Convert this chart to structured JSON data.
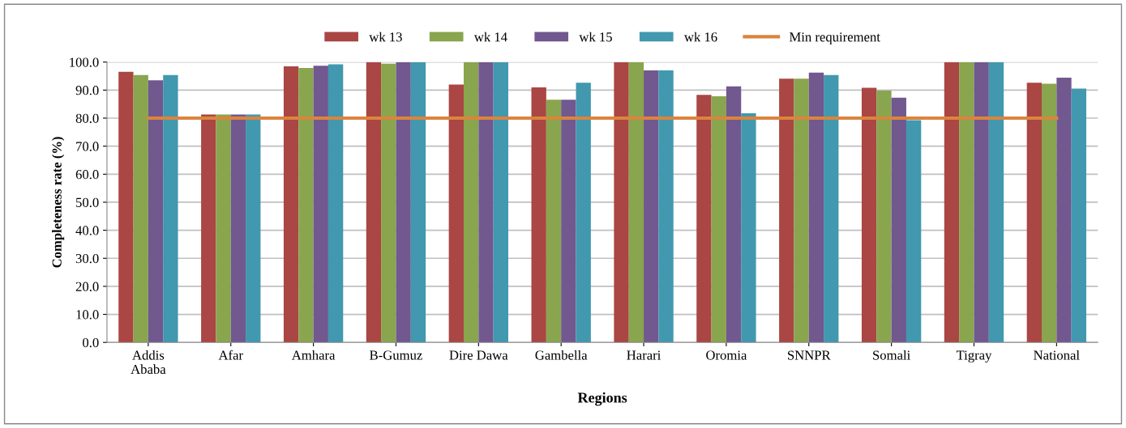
{
  "chart_data": {
    "type": "bar",
    "xlabel": "Regions",
    "ylabel": "Completeness rate (%)",
    "categories": [
      "Addis\nAbaba",
      "Afar",
      "Amhara",
      "B-Gumuz",
      "Dire Dawa",
      "Gambella",
      "Harari",
      "Oromia",
      "SNNPR",
      "Somali",
      "Tigray",
      "National"
    ],
    "series": [
      {
        "name": "wk 13",
        "color": "#aa4643",
        "values": [
          96.5,
          81.3,
          98.5,
          100,
          92.0,
          91.0,
          100,
          88.3,
          94.1,
          90.8,
          100,
          92.6
        ]
      },
      {
        "name": "wk 14",
        "color": "#89a54e",
        "values": [
          95.4,
          81.3,
          97.9,
          99.4,
          100,
          86.6,
          100,
          87.8,
          94.1,
          89.8,
          100,
          92.3
        ]
      },
      {
        "name": "wk 15",
        "color": "#71588f",
        "values": [
          93.5,
          81.3,
          98.7,
          100,
          100,
          86.6,
          97.0,
          91.3,
          96.2,
          87.3,
          100,
          94.4
        ]
      },
      {
        "name": "wk 16",
        "color": "#4198af",
        "values": [
          95.4,
          81.3,
          99.2,
          100,
          100,
          92.6,
          97.0,
          81.7,
          95.4,
          79.3,
          100,
          90.5
        ]
      },
      {
        "name": "Min requirement",
        "type": "line",
        "color": "#db843d",
        "values": [
          80,
          80,
          80,
          80,
          80,
          80,
          80,
          80,
          80,
          80,
          80,
          80
        ]
      }
    ],
    "ylim": [
      0,
      100
    ],
    "yticks": [
      {
        "value": 0,
        "label": "0.0"
      },
      {
        "value": 10,
        "label": "10.0"
      },
      {
        "value": 20,
        "label": "20.0"
      },
      {
        "value": 30,
        "label": "30.0"
      },
      {
        "value": 40,
        "label": "40.0"
      },
      {
        "value": 50,
        "label": "50.0"
      },
      {
        "value": 60,
        "label": "60.0"
      },
      {
        "value": 70,
        "label": "70.0"
      },
      {
        "value": 80,
        "label": "80.0"
      },
      {
        "value": 90,
        "label": "90.0"
      },
      {
        "value": 100,
        "label": "100.0"
      }
    ],
    "grid": "y",
    "legend": "top"
  }
}
